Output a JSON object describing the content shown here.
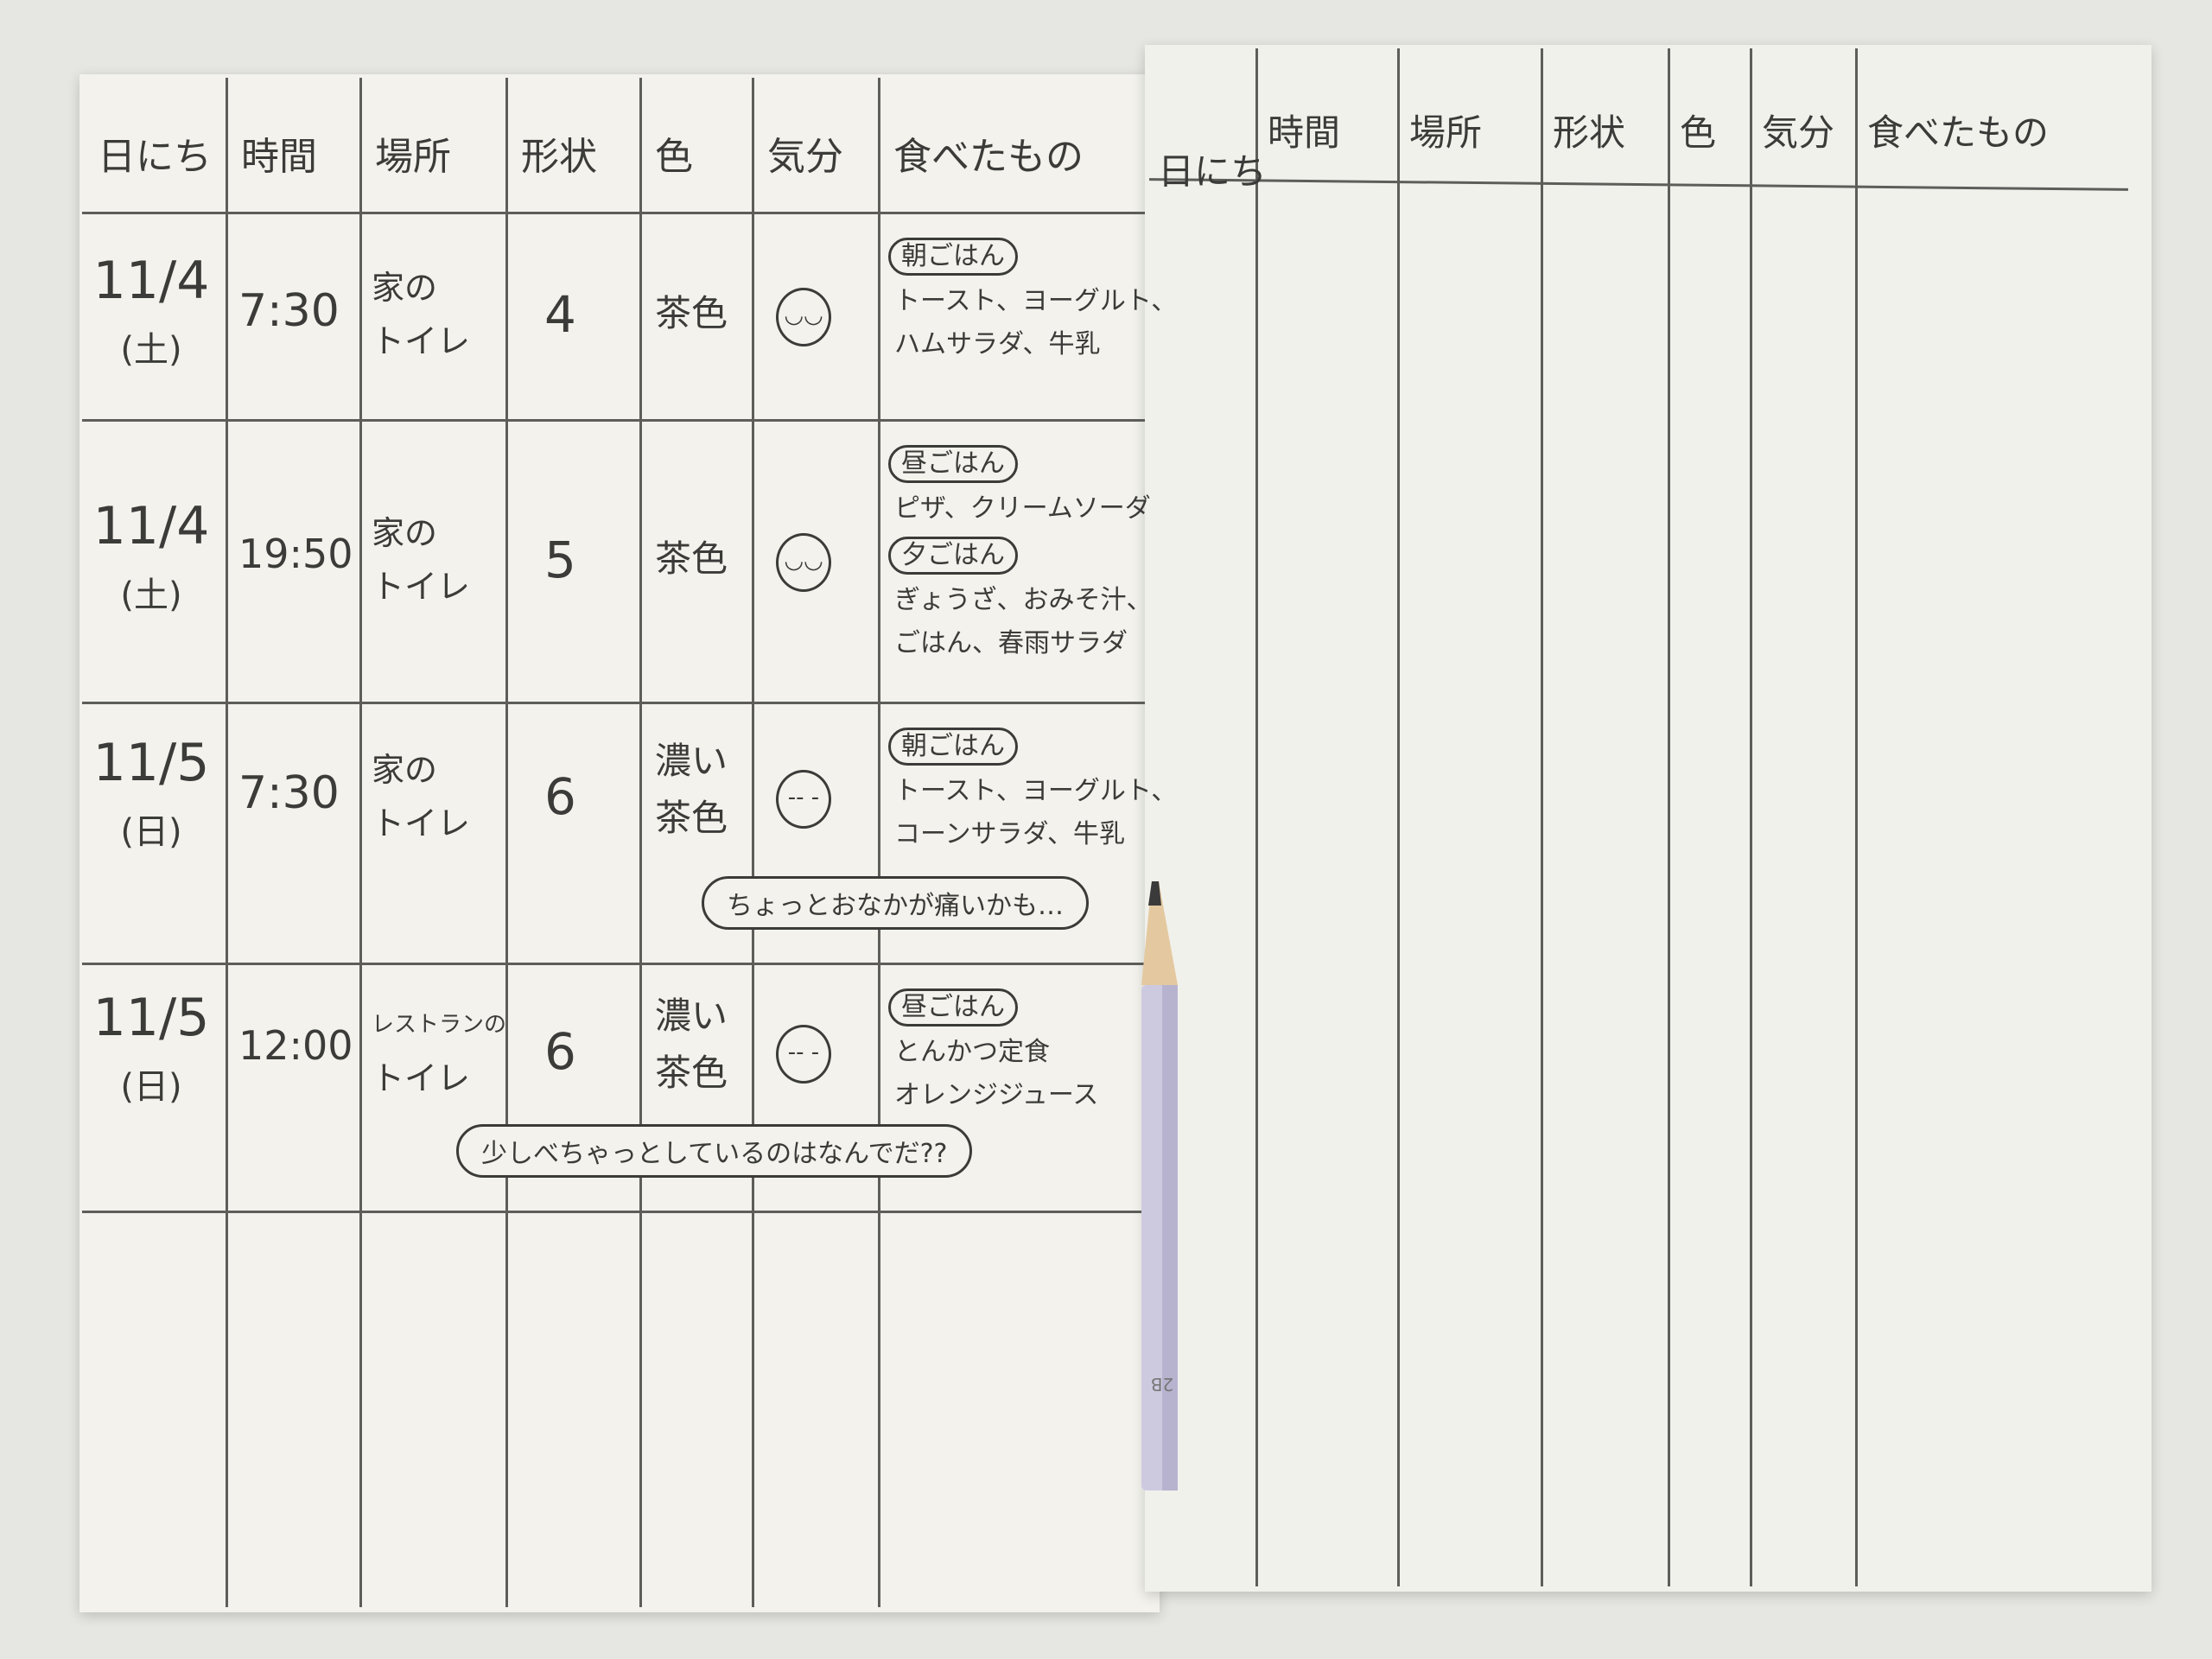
{
  "headers": [
    "日にち",
    "時間",
    "場所",
    "形状",
    "色",
    "気分",
    "食べたもの"
  ],
  "entries": [
    {
      "date": "11/4",
      "weekday": "(土)",
      "time": "7:30",
      "place": [
        "家の",
        "トイレ"
      ],
      "shape": "4",
      "color": [
        "茶色"
      ],
      "mood": "smile",
      "meals": [
        {
          "label": "朝ごはん",
          "items": [
            "トースト、ヨーグルト、",
            "ハムサラダ、牛乳"
          ]
        }
      ]
    },
    {
      "date": "11/4",
      "weekday": "(土)",
      "time": "19:50",
      "place": [
        "家の",
        "トイレ"
      ],
      "shape": "5",
      "color": [
        "茶色"
      ],
      "mood": "smile",
      "meals": [
        {
          "label": "昼ごはん",
          "items": [
            "ピザ、クリームソーダ"
          ]
        },
        {
          "label": "夕ごはん",
          "items": [
            "ぎょうざ、おみそ汁、",
            "ごはん、春雨サラダ"
          ]
        }
      ]
    },
    {
      "date": "11/5",
      "weekday": "(日)",
      "time": "7:30",
      "place": [
        "家の",
        "トイレ"
      ],
      "shape": "6",
      "color": [
        "濃い",
        "茶色"
      ],
      "mood": "neutral",
      "meals": [
        {
          "label": "朝ごはん",
          "items": [
            "トースト、ヨーグルト、",
            "コーンサラダ、牛乳"
          ]
        }
      ],
      "note": "ちょっとおなかが痛いかも…"
    },
    {
      "date": "11/5",
      "weekday": "(日)",
      "time": "12:00",
      "place": [
        "レストランの",
        "トイレ"
      ],
      "shape": "6",
      "color": [
        "濃い",
        "茶色"
      ],
      "mood": "neutral",
      "meals": [
        {
          "label": "昼ごはん",
          "items": [
            "とんかつ定食",
            "オレンジジュース"
          ]
        }
      ],
      "note": "少しべちゃっとしているのはなんでだ??"
    }
  ],
  "pencil_label": "2B",
  "colors": {
    "paper": "#f3f2ec",
    "ink": "#3b3b39",
    "pencil": "#c9c6dc"
  }
}
